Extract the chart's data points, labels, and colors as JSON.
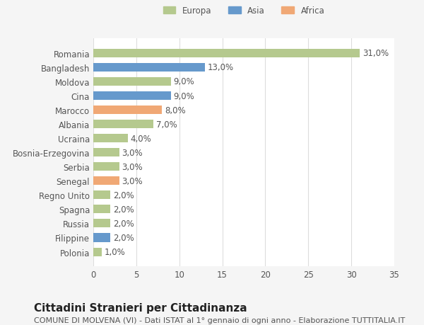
{
  "categories": [
    "Polonia",
    "Filippine",
    "Russia",
    "Spagna",
    "Regno Unito",
    "Senegal",
    "Serbia",
    "Bosnia-Erzegovina",
    "Ucraina",
    "Albania",
    "Marocco",
    "Cina",
    "Moldova",
    "Bangladesh",
    "Romania"
  ],
  "values": [
    1.0,
    2.0,
    2.0,
    2.0,
    2.0,
    3.0,
    3.0,
    3.0,
    4.0,
    7.0,
    8.0,
    9.0,
    9.0,
    13.0,
    31.0
  ],
  "colors": [
    "#b5c98e",
    "#6699cc",
    "#b5c98e",
    "#b5c98e",
    "#b5c98e",
    "#f0a875",
    "#b5c98e",
    "#b5c98e",
    "#b5c98e",
    "#b5c98e",
    "#f0a875",
    "#6699cc",
    "#b5c98e",
    "#6699cc",
    "#b5c98e"
  ],
  "labels": [
    "1,0%",
    "2,0%",
    "2,0%",
    "2,0%",
    "2,0%",
    "3,0%",
    "3,0%",
    "3,0%",
    "4,0%",
    "7,0%",
    "8,0%",
    "9,0%",
    "9,0%",
    "13,0%",
    "31,0%"
  ],
  "legend": [
    {
      "label": "Europa",
      "color": "#b5c98e"
    },
    {
      "label": "Asia",
      "color": "#6699cc"
    },
    {
      "label": "Africa",
      "color": "#f0a875"
    }
  ],
  "xlim": [
    0,
    35
  ],
  "xticks": [
    0,
    5,
    10,
    15,
    20,
    25,
    30,
    35
  ],
  "title": "Cittadini Stranieri per Cittadinanza",
  "subtitle": "COMUNE DI MOLVENA (VI) - Dati ISTAT al 1° gennaio di ogni anno - Elaborazione TUTTITALIA.IT",
  "bg_color": "#f5f5f5",
  "plot_bg_color": "#ffffff",
  "grid_color": "#dddddd",
  "bar_height": 0.6,
  "label_fontsize": 8.5,
  "tick_fontsize": 8.5,
  "title_fontsize": 11,
  "subtitle_fontsize": 8
}
